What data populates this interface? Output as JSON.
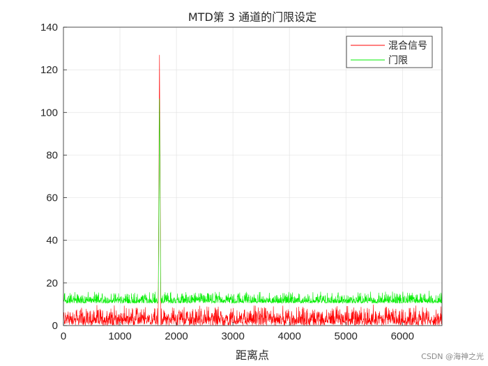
{
  "chart_data": {
    "type": "line",
    "title": "MTD第 3 通道的门限设定",
    "xlabel": "距离点",
    "ylabel": "",
    "xlim": [
      0,
      6700
    ],
    "ylim": [
      0,
      140
    ],
    "xticks": [
      0,
      1000,
      2000,
      3000,
      4000,
      5000,
      6000
    ],
    "yticks": [
      0,
      20,
      40,
      60,
      80,
      100,
      120,
      140
    ],
    "grid": true,
    "legend_position": "top-right",
    "colors": {
      "mixed": "#ff0000",
      "threshold": "#00ee00"
    },
    "series": [
      {
        "name": "混合信号",
        "color": "#ff0000",
        "description_values": {
          "noise_floor_range": [
            0,
            10
          ],
          "peak_x": 1700,
          "peak_y": 127
        }
      },
      {
        "name": "门限",
        "color": "#00ee00",
        "description_values": {
          "base_level_range": [
            10,
            16
          ],
          "peak_x": 1700,
          "peak_y": 108
        }
      }
    ]
  },
  "watermark": "CSDN @海神之光"
}
